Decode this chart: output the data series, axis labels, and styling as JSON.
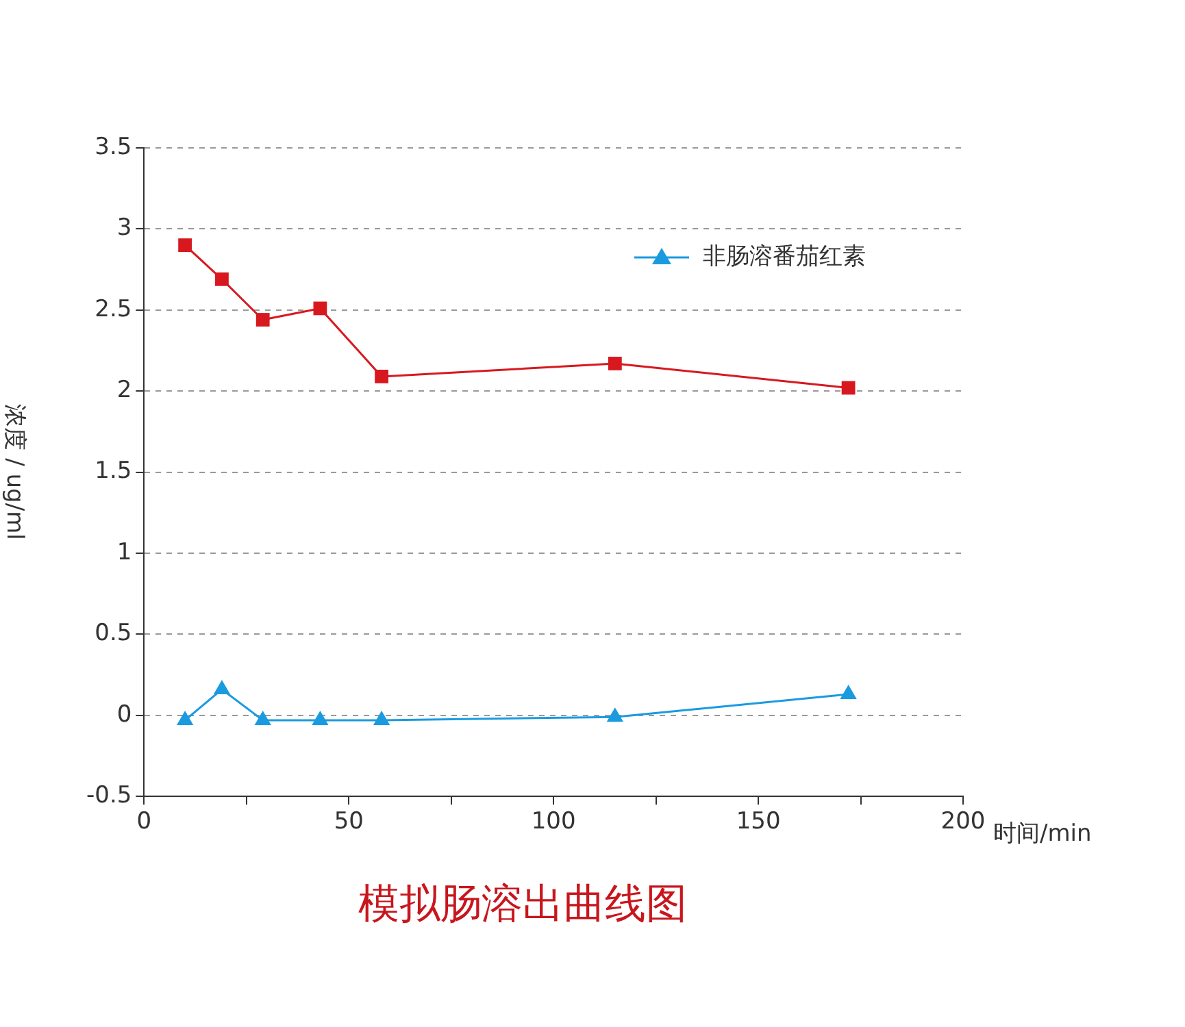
{
  "chart_data": {
    "type": "line",
    "title": "模拟肠溶出曲线图",
    "xlabel": "时间/min",
    "ylabel": "浓度 / ug/ml",
    "xlim": [
      0,
      200
    ],
    "xticks": [
      0,
      {
        "value": 25,
        "label": null
      },
      50,
      {
        "value": 75,
        "label": null
      },
      100,
      {
        "value": 125,
        "label": null
      },
      150,
      {
        "value": 175,
        "label": null
      },
      200
    ],
    "ylim": [
      -0.5,
      3.5
    ],
    "yticks": [
      -0.5,
      0,
      0.5,
      1,
      1.5,
      2,
      2.5,
      3,
      3.5
    ],
    "grid": "y",
    "legend": "top right",
    "series": [
      {
        "color": "#d7191f",
        "marker": "square",
        "x": [
          10,
          19,
          29,
          43,
          58,
          115,
          172
        ],
        "values": [
          2.9,
          2.69,
          2.44,
          2.51,
          2.09,
          2.17,
          2.02
        ]
      },
      {
        "name": "非肠溶番茄红素",
        "color": "#1a9be0",
        "marker": "triangle",
        "x": [
          10,
          19,
          29,
          43,
          58,
          115,
          172
        ],
        "values": [
          -0.03,
          0.16,
          -0.03,
          -0.03,
          -0.03,
          -0.01,
          0.13
        ]
      }
    ]
  }
}
